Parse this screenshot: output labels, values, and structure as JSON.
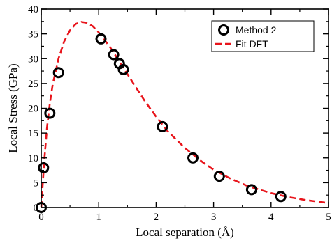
{
  "chart_data": {
    "type": "scatter",
    "xlabel": "Local separation (Å)",
    "ylabel": "Local Stress (GPa)",
    "xlim": [
      0,
      5
    ],
    "ylim": [
      0,
      40
    ],
    "x_ticks": [
      "0",
      "1",
      "2",
      "3",
      "4",
      "5"
    ],
    "y_ticks": [
      "0",
      "5",
      "10",
      "15",
      "20",
      "25",
      "30",
      "35",
      "40"
    ],
    "grid": false,
    "legend_position": "top-right",
    "series": [
      {
        "name": "Method 2",
        "kind": "scatter",
        "marker": "open-circle",
        "color": "#000000",
        "points": [
          [
            0.0,
            0.0
          ],
          [
            0.04,
            8.0
          ],
          [
            0.15,
            19.0
          ],
          [
            0.3,
            27.2
          ],
          [
            1.04,
            34.0
          ],
          [
            1.26,
            30.8
          ],
          [
            1.36,
            29.0
          ],
          [
            1.43,
            27.8
          ],
          [
            2.11,
            16.3
          ],
          [
            2.64,
            10.0
          ],
          [
            3.1,
            6.3
          ],
          [
            3.66,
            3.6
          ],
          [
            4.17,
            2.2
          ]
        ]
      },
      {
        "name": "Fit DFT",
        "kind": "line",
        "style": "dashed",
        "color": "#e8141b",
        "points": [
          [
            0.0,
            0.0
          ],
          [
            0.05,
            9.0
          ],
          [
            0.1,
            16.0
          ],
          [
            0.15,
            21.0
          ],
          [
            0.2,
            24.8
          ],
          [
            0.3,
            30.0
          ],
          [
            0.4,
            33.5
          ],
          [
            0.5,
            35.7
          ],
          [
            0.6,
            37.0
          ],
          [
            0.7,
            37.4
          ],
          [
            0.8,
            37.2
          ],
          [
            0.9,
            36.5
          ],
          [
            1.0,
            35.3
          ],
          [
            1.2,
            32.3
          ],
          [
            1.4,
            28.7
          ],
          [
            1.6,
            25.1
          ],
          [
            1.8,
            21.5
          ],
          [
            2.0,
            18.3
          ],
          [
            2.2,
            15.4
          ],
          [
            2.5,
            12.0
          ],
          [
            2.8,
            9.2
          ],
          [
            3.0,
            7.6
          ],
          [
            3.3,
            5.8
          ],
          [
            3.6,
            4.3
          ],
          [
            4.0,
            2.9
          ],
          [
            4.3,
            2.1
          ],
          [
            4.6,
            1.5
          ],
          [
            5.0,
            0.9
          ]
        ]
      }
    ]
  }
}
